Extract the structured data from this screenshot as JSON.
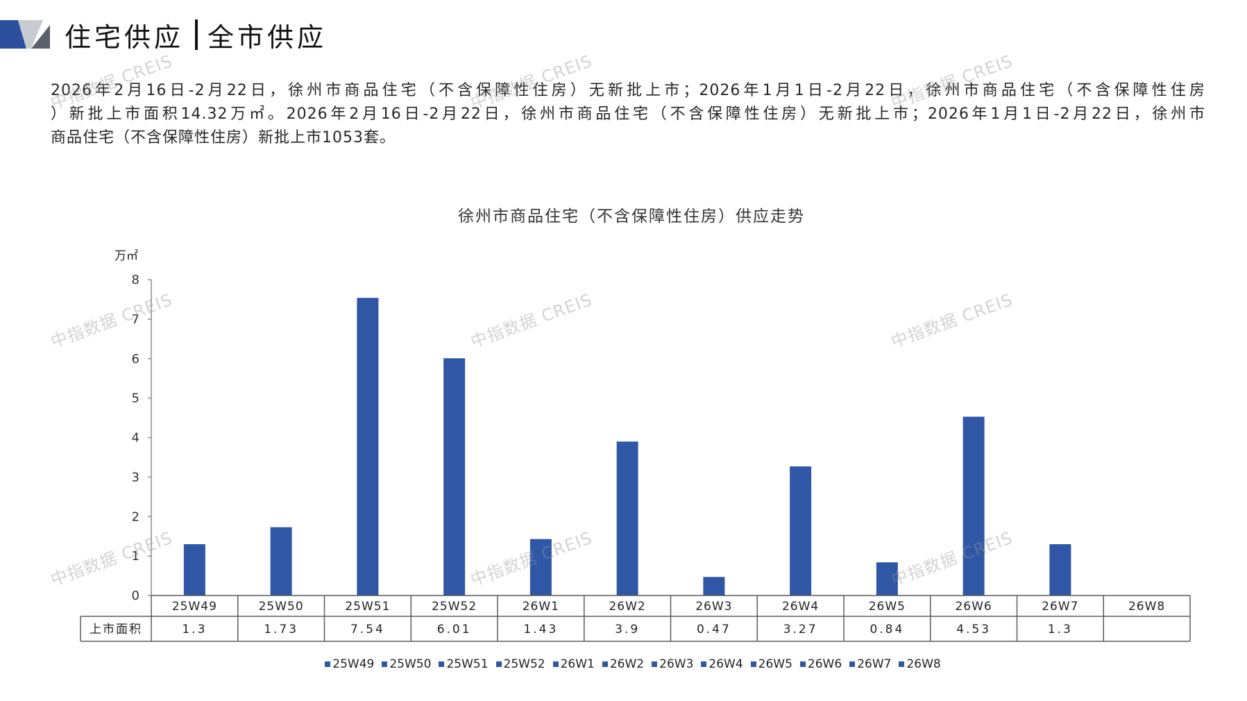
{
  "header": {
    "title_left": "住宅供应",
    "title_right": "全市供应",
    "logo_colors": {
      "blue": "#2D4F9E",
      "gray_light": "#C8CBD2",
      "gray_dark": "#5B606B"
    }
  },
  "summary": {
    "lines": [
      "2026年2月16日-2月22日，徐州市商品住宅（不含保障性住房）无新批上市；2026年1月1日-2月22日，徐州市商品住宅（不含保障性住房",
      "）新批上市面积14.32万㎡。2026年2月16日-2月22日，徐州市商品住宅（不含保障性住房）无新批上市；2026年1月1日-2月22日，徐州市",
      "商品住宅（不含保障性住房）新批上市1053套。"
    ]
  },
  "watermark": "中指数据 CREIS",
  "chart_data": {
    "type": "bar",
    "title": "徐州市商品住宅（不含保障性住房）供应走势",
    "xlabel": "",
    "ylabel": "万㎡",
    "categories": [
      "25W49",
      "25W50",
      "25W51",
      "25W52",
      "26W1",
      "26W2",
      "26W3",
      "26W4",
      "26W5",
      "26W6",
      "26W7",
      "26W8"
    ],
    "series": [
      {
        "name": "上市面积",
        "values": [
          1.3,
          1.73,
          7.54,
          6.01,
          1.43,
          3.9,
          0.47,
          3.27,
          0.84,
          4.53,
          1.3,
          null
        ]
      }
    ],
    "ylim": [
      0,
      8
    ],
    "yticks": [
      0,
      1,
      2,
      3,
      4,
      5,
      6,
      7,
      8
    ],
    "grid": false,
    "data_table": true,
    "legend": "bottom",
    "bar_color": "#2F57A5"
  }
}
